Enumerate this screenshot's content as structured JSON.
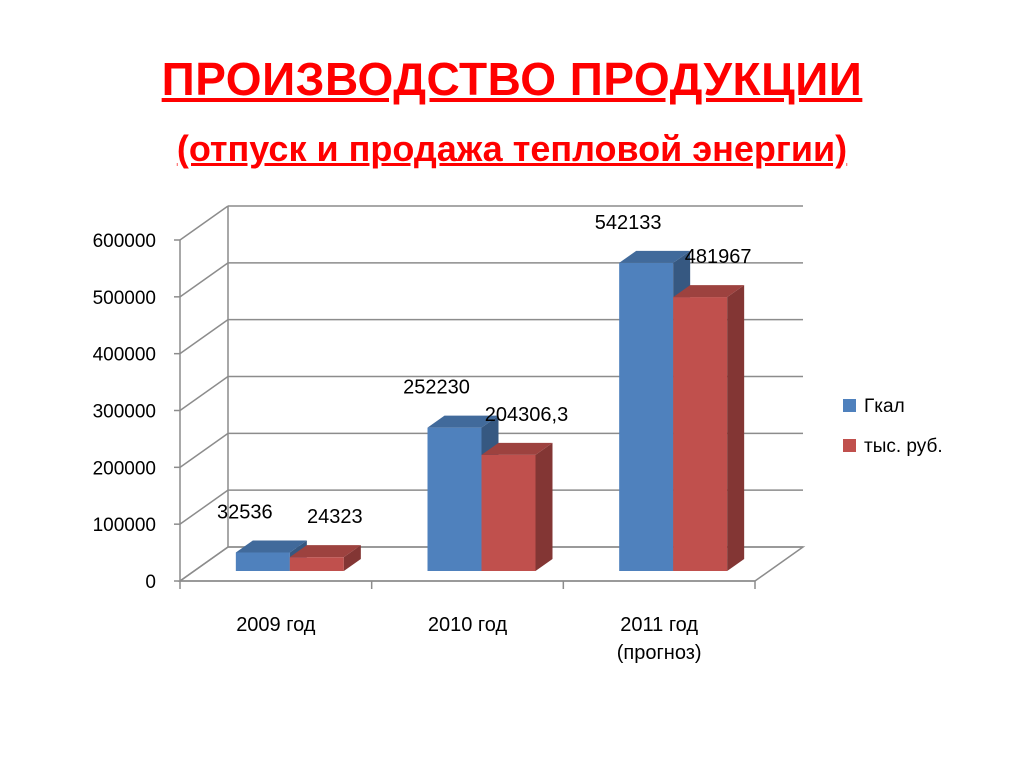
{
  "title": "ПРОИЗВОДСТВО ПРОДУКЦИИ",
  "subtitle": "(отпуск и продажа тепловой энергии)",
  "chart_data": {
    "type": "bar",
    "categories": [
      [
        "2009 год"
      ],
      [
        "2010 год"
      ],
      [
        "2011 год",
        "(прогноз)"
      ]
    ],
    "series": [
      {
        "name": "Гкал",
        "values": [
          32536,
          252230,
          542133
        ],
        "labels": [
          "32536",
          "252230",
          "542133"
        ],
        "color": "#4F81BD"
      },
      {
        "name": "тыс. руб.",
        "values": [
          24323,
          204306.3,
          481967
        ],
        "labels": [
          "24323",
          "204306,3",
          "481967"
        ],
        "color": "#C0504D"
      }
    ],
    "yticks": [
      "0",
      "100000",
      "200000",
      "300000",
      "400000",
      "500000",
      "600000"
    ],
    "ylim": [
      0,
      600000
    ],
    "grid": true,
    "legend": "right",
    "three_d": true
  }
}
